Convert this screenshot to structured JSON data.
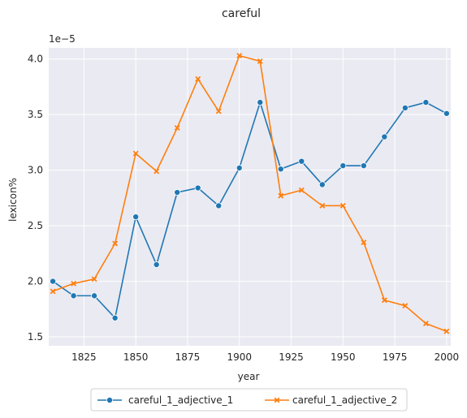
{
  "chart_data": {
    "type": "line",
    "title": "careful",
    "xlabel": "year",
    "ylabel": "lexicon%",
    "y_scale_label": "1e−5",
    "xlim": [
      1808,
      2002
    ],
    "ylim": [
      1.42,
      4.1
    ],
    "x_ticks": [
      1825,
      1850,
      1875,
      1900,
      1925,
      1950,
      1975,
      2000
    ],
    "y_ticks": [
      1.5,
      2.0,
      2.5,
      3.0,
      3.5,
      4.0
    ],
    "y_tick_labels": [
      "1.5",
      "2.0",
      "2.5",
      "3.0",
      "3.5",
      "4.0"
    ],
    "grid": true,
    "legend_placement": "bottom-center",
    "x": [
      1810,
      1820,
      1830,
      1840,
      1850,
      1860,
      1870,
      1880,
      1890,
      1900,
      1910,
      1920,
      1930,
      1940,
      1950,
      1960,
      1970,
      1980,
      1990,
      2000
    ],
    "series": [
      {
        "name": "careful_1_adjective_1",
        "color": "#1f77b4",
        "marker": "circle",
        "values": [
          2.0,
          1.87,
          1.87,
          1.67,
          2.58,
          2.15,
          2.8,
          2.84,
          2.68,
          3.02,
          3.61,
          3.01,
          3.08,
          2.87,
          3.04,
          3.04,
          3.3,
          3.56,
          3.61,
          3.51
        ]
      },
      {
        "name": "careful_1_adjective_2",
        "color": "#ff7f0e",
        "marker": "x",
        "values": [
          1.91,
          1.98,
          2.02,
          2.34,
          3.15,
          2.99,
          3.38,
          3.82,
          3.53,
          4.03,
          3.98,
          2.77,
          2.82,
          2.68,
          2.68,
          2.35,
          1.83,
          1.78,
          1.62,
          1.55
        ]
      }
    ]
  }
}
